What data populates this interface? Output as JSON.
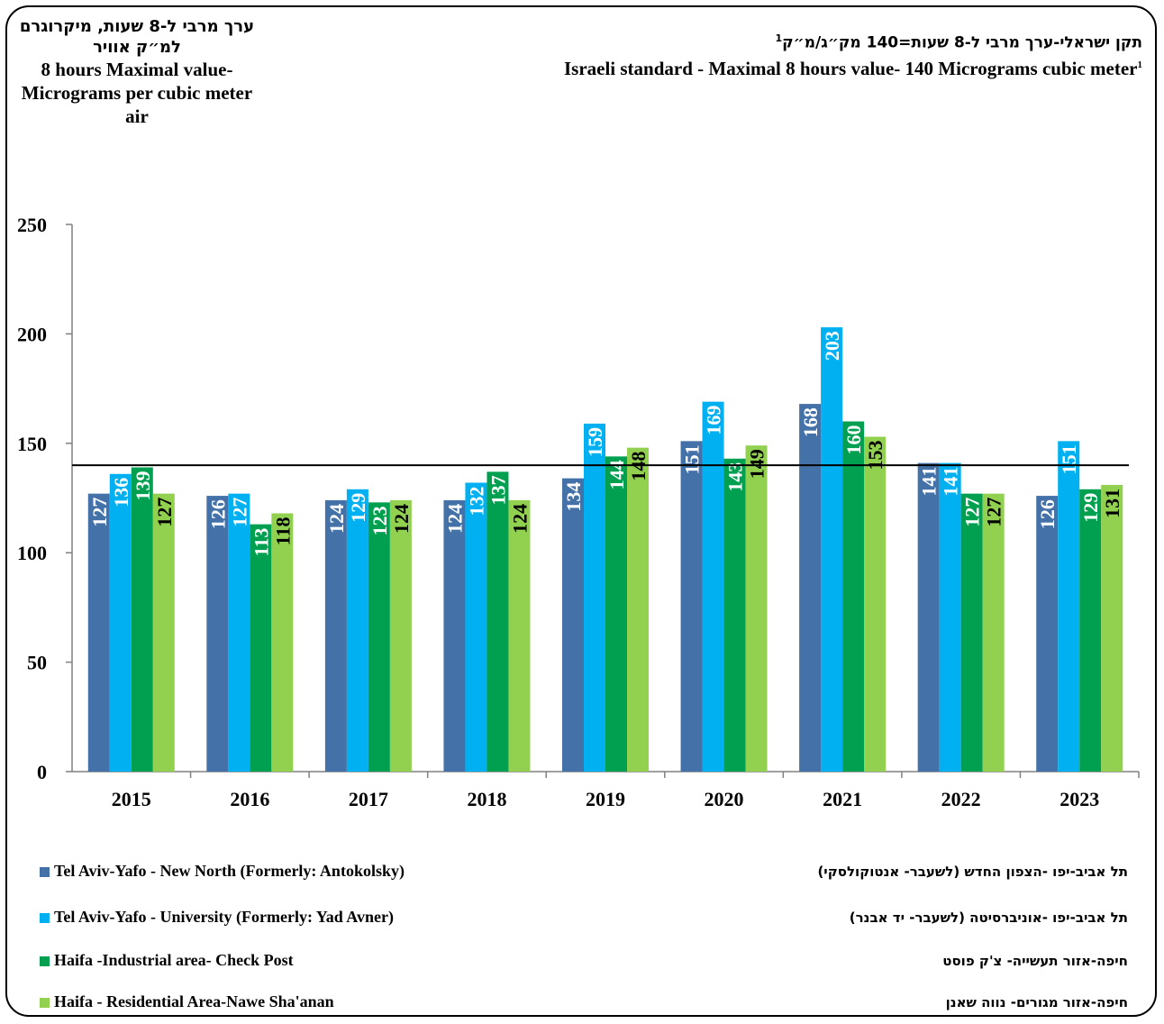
{
  "header": {
    "ylabel_he": "ערך מרבי ל-8 שעות, מיקרוגרם למ״ק אוויר",
    "ylabel_en": "8 hours Maximal value-Micrograms per cubic meter air",
    "title_he": "תקן ישראלי-ערך מרבי ל-8 שעות=140 מק״ג/מ״ק",
    "title_en": "Israeli standard - Maximal 8 hours value- 140 Micrograms cubic meter",
    "footnote_mark": "1"
  },
  "chart_data": {
    "type": "bar",
    "categories": [
      "2015",
      "2016",
      "2017",
      "2018",
      "2019",
      "2020",
      "2021",
      "2022",
      "2023"
    ],
    "ylim": [
      0,
      250
    ],
    "yticks": [
      0,
      50,
      100,
      150,
      200,
      250
    ],
    "grid": false,
    "reference_line": {
      "value": 140,
      "color": "#000000"
    },
    "legend_position": "bottom",
    "series": [
      {
        "name": "Tel Aviv-Yafo - New North (Formerly: Antokolsky)",
        "name_he": "תל אביב-יפו -הצפון החדש (לשעבר- אנטוקולסקי)",
        "color": "#4472a8",
        "label_color": "#ffffff",
        "values": [
          127,
          126,
          124,
          124,
          134,
          151,
          168,
          141,
          126
        ]
      },
      {
        "name": "Tel Aviv-Yafo - University (Formerly: Yad Avner)",
        "name_he": "תל אביב-יפו -אוניברסיטה (לשעבר- יד אבנר)",
        "color": "#00b0f0",
        "label_color": "#ffffff",
        "values": [
          136,
          127,
          129,
          132,
          159,
          169,
          203,
          141,
          151
        ]
      },
      {
        "name": "Haifa -Industrial area- Check Post",
        "name_he": "חיפה-אזור תעשייה- צ'ק פוסט",
        "color": "#00a050",
        "label_color": "#ffffff",
        "values": [
          139,
          113,
          123,
          137,
          144,
          143,
          160,
          127,
          129
        ]
      },
      {
        "name": "Haifa - Residential Area-Nawe Sha'anan",
        "name_he": "חיפה-אזור מגורים- נווה שאנן",
        "color": "#92d050",
        "label_color": "#000000",
        "values": [
          127,
          118,
          124,
          124,
          148,
          149,
          153,
          127,
          131
        ]
      }
    ]
  }
}
